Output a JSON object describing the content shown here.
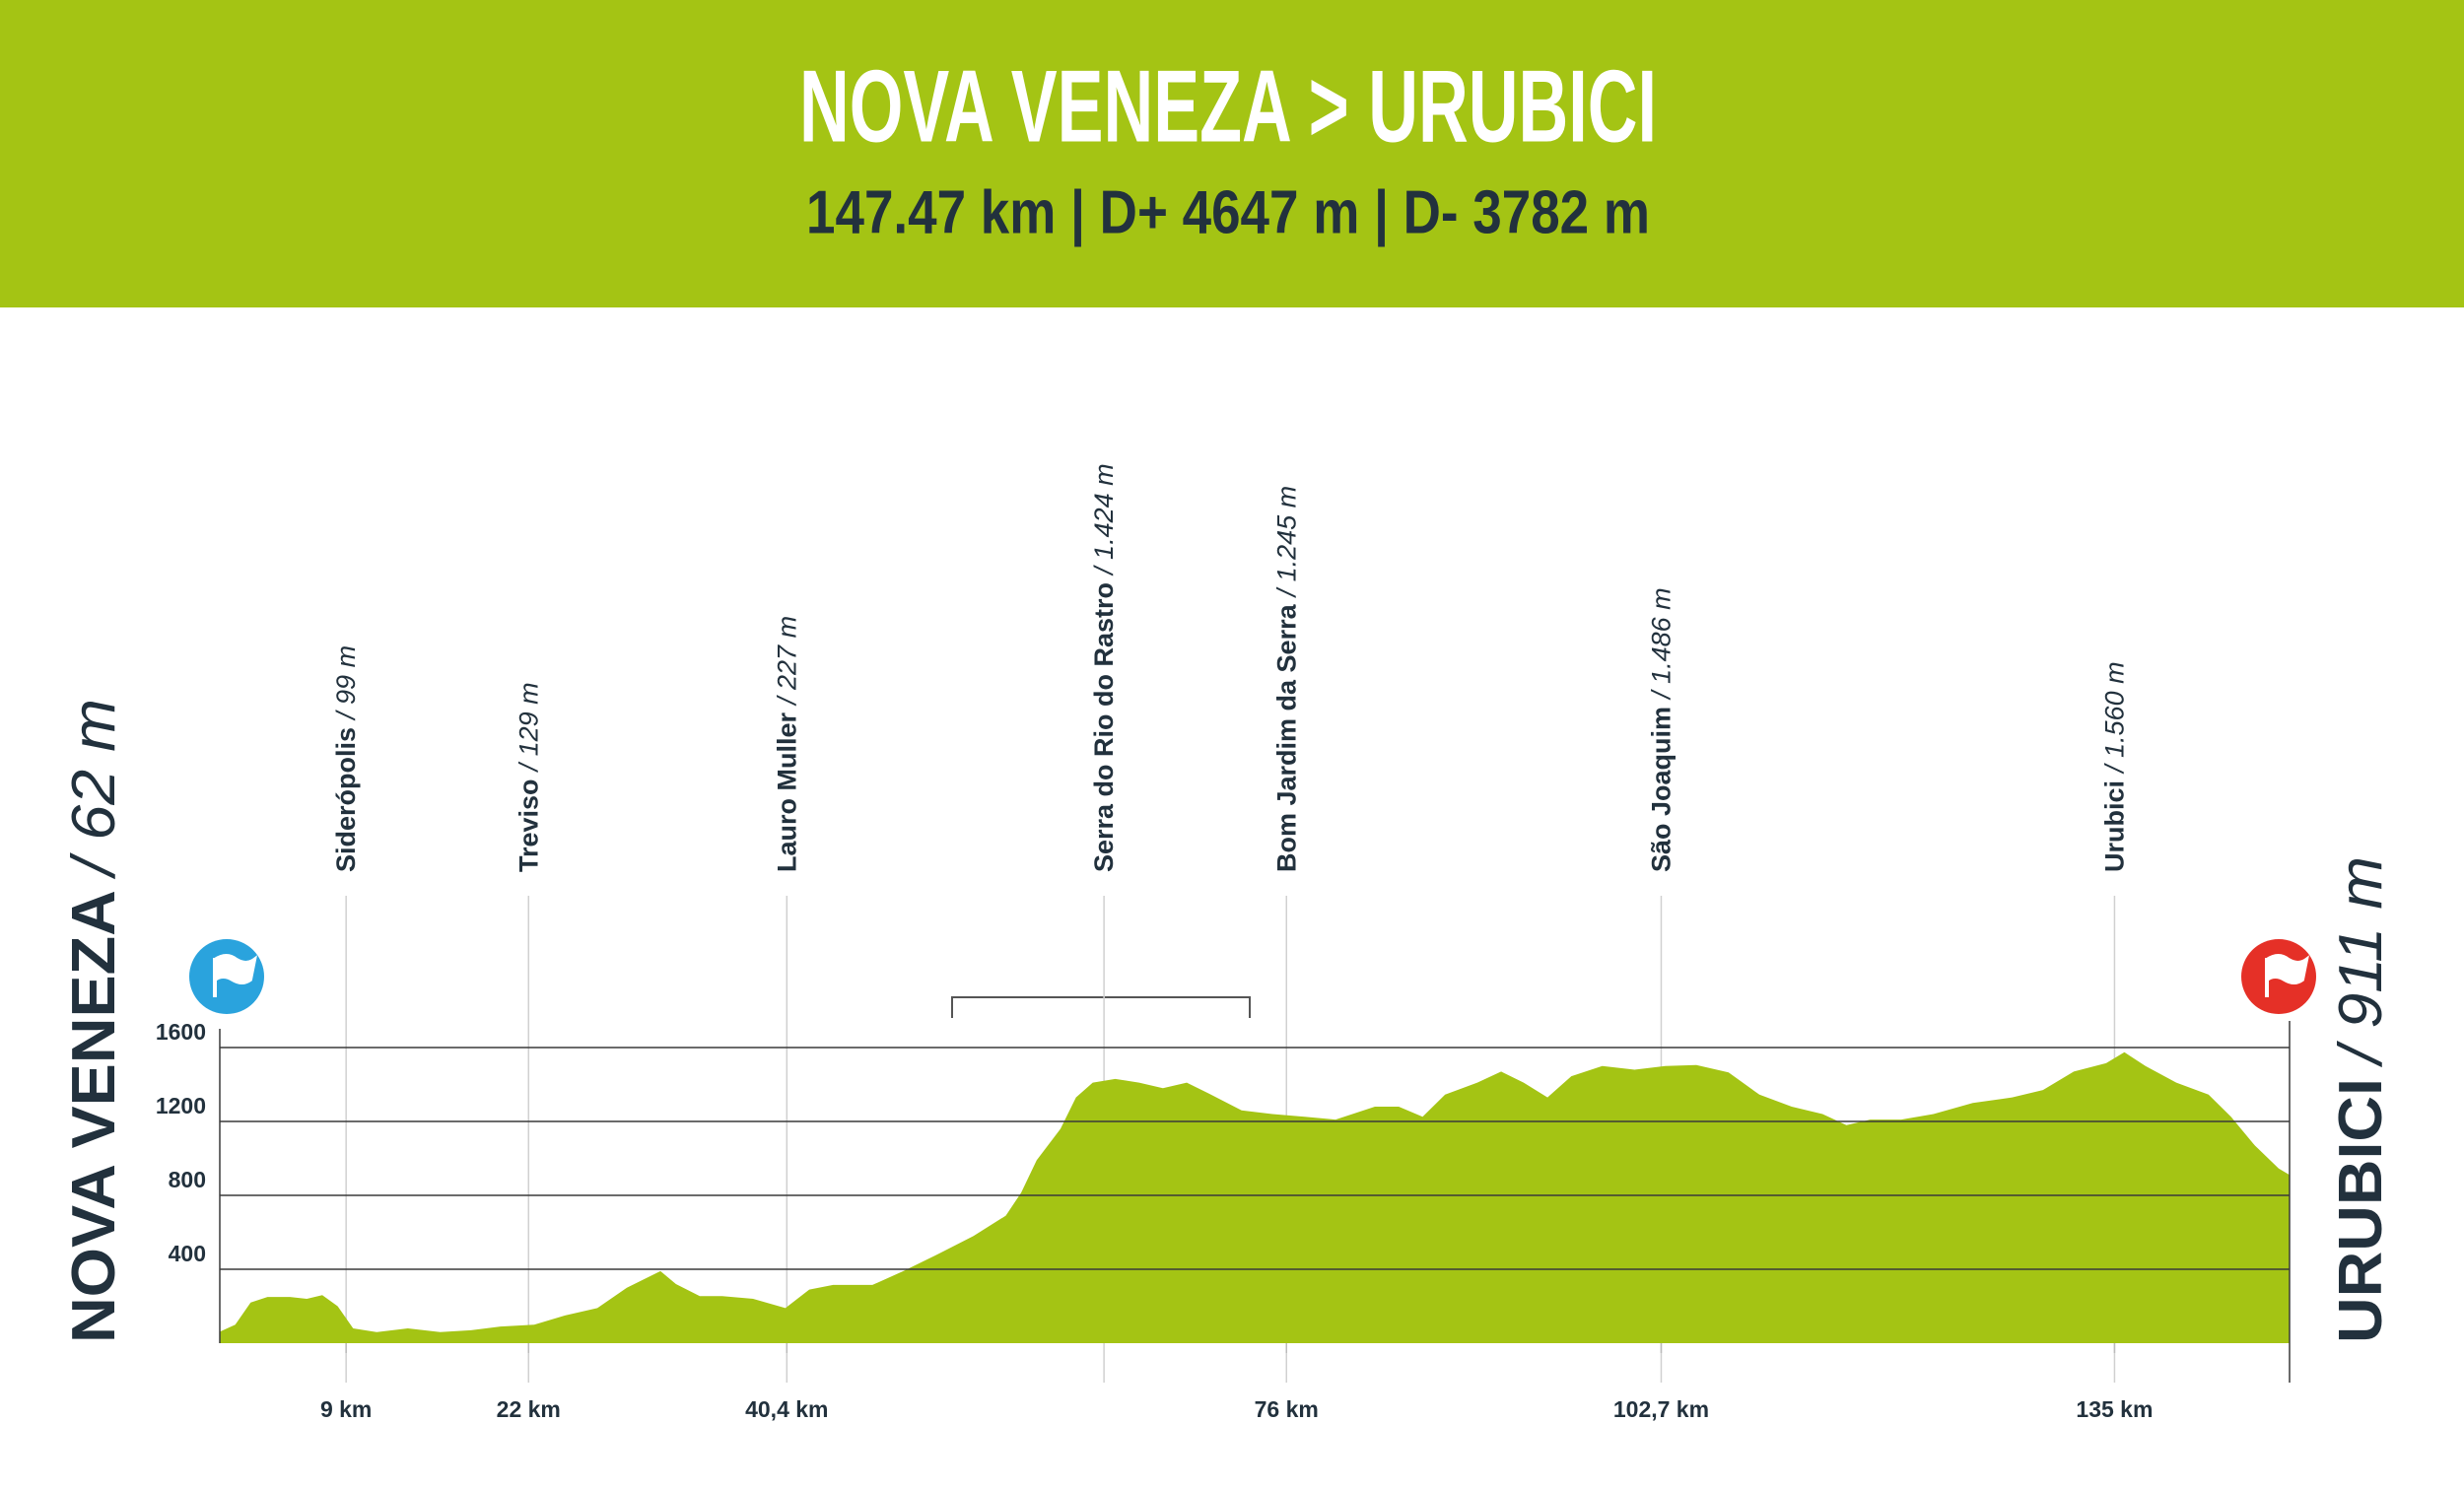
{
  "chart_data": {
    "type": "area",
    "title": "NOVA VENEZA > URUBICI",
    "subtitle": "147.47 km | D+ 4647 m | D- 3782 m",
    "start": {
      "name": "NOVA VENEZA",
      "elevation": "/ 62 m"
    },
    "end": {
      "name": "URUBICI",
      "elevation": "/ 911 m"
    },
    "color": "#a4c414",
    "x": [
      0,
      1.1,
      2.2,
      3.4,
      5,
      6.2,
      7.3,
      8.4,
      9.5,
      11.2,
      13.4,
      15.7,
      17.9,
      20,
      22.4,
      24.6,
      26.9,
      29,
      31.4,
      32.5,
      34.2,
      35.8,
      38,
      40.3,
      42,
      43.7,
      46.5,
      48.7,
      51,
      53.7,
      56,
      57.1,
      58.2,
      59.9,
      61,
      62.2,
      63.8,
      65.5,
      67.2,
      68.9,
      70.5,
      72.8,
      75,
      77.3,
      79.5,
      82.3,
      84,
      85.7,
      87.3,
      89.6,
      91.3,
      92.9,
      94.6,
      96.3,
      98.5,
      100.8,
      103,
      105.2,
      107.5,
      109.7,
      112,
      114.2,
      115.9,
      117.6,
      119.8,
      122.1,
      124.9,
      127.7,
      129.9,
      132.1,
      134.4,
      135.7,
      137.2,
      139.4,
      141.7,
      143.3,
      145,
      146.7,
      147.47
    ],
    "values": [
      62,
      100,
      220,
      250,
      250,
      240,
      260,
      200,
      80,
      60,
      80,
      60,
      70,
      90,
      100,
      150,
      190,
      300,
      390,
      320,
      255,
      255,
      240,
      190,
      290,
      315,
      315,
      390,
      475,
      580,
      690,
      815,
      990,
      1160,
      1330,
      1410,
      1430,
      1410,
      1380,
      1410,
      1350,
      1260,
      1240,
      1225,
      1210,
      1280,
      1280,
      1225,
      1345,
      1410,
      1470,
      1410,
      1330,
      1445,
      1500,
      1480,
      1500,
      1505,
      1465,
      1345,
      1280,
      1240,
      1180,
      1210,
      1210,
      1240,
      1300,
      1330,
      1370,
      1470,
      1515,
      1575,
      1500,
      1410,
      1345,
      1225,
      1070,
      945,
      911
    ],
    "xlim": [
      0,
      147.47
    ],
    "ylim": [
      0,
      1600
    ],
    "yticks": [
      400,
      800,
      1200,
      1600
    ],
    "xticks": [
      {
        "value": 9,
        "label": "9 km"
      },
      {
        "value": 22,
        "label": "22 km"
      },
      {
        "value": 40.4,
        "label": "40,4 km"
      },
      {
        "value": 76,
        "label": "76 km"
      },
      {
        "value": 102.7,
        "label": "102,7 km"
      },
      {
        "value": 135,
        "label": "135 km"
      }
    ],
    "grid": true,
    "waypoints": [
      {
        "name": "Siderópolis",
        "elevation": "/ 99 m",
        "x": 9
      },
      {
        "name": "Treviso",
        "elevation": "/ 129 m",
        "x": 22
      },
      {
        "name": "Lauro Muller",
        "elevation": "/ 227 m",
        "x": 40.4
      },
      {
        "name": "Serra do Rio do Rastro",
        "elevation": "/ 1.424 m",
        "x": 63
      },
      {
        "name": "Bom Jardim da Serra",
        "elevation": "/ 1.245 m",
        "x": 76
      },
      {
        "name": "São Joaquim",
        "elevation": "/ 1.486 m",
        "x": 102.7
      },
      {
        "name": "Urubici",
        "elevation": "/ 1.560 m",
        "x": 135
      }
    ]
  }
}
